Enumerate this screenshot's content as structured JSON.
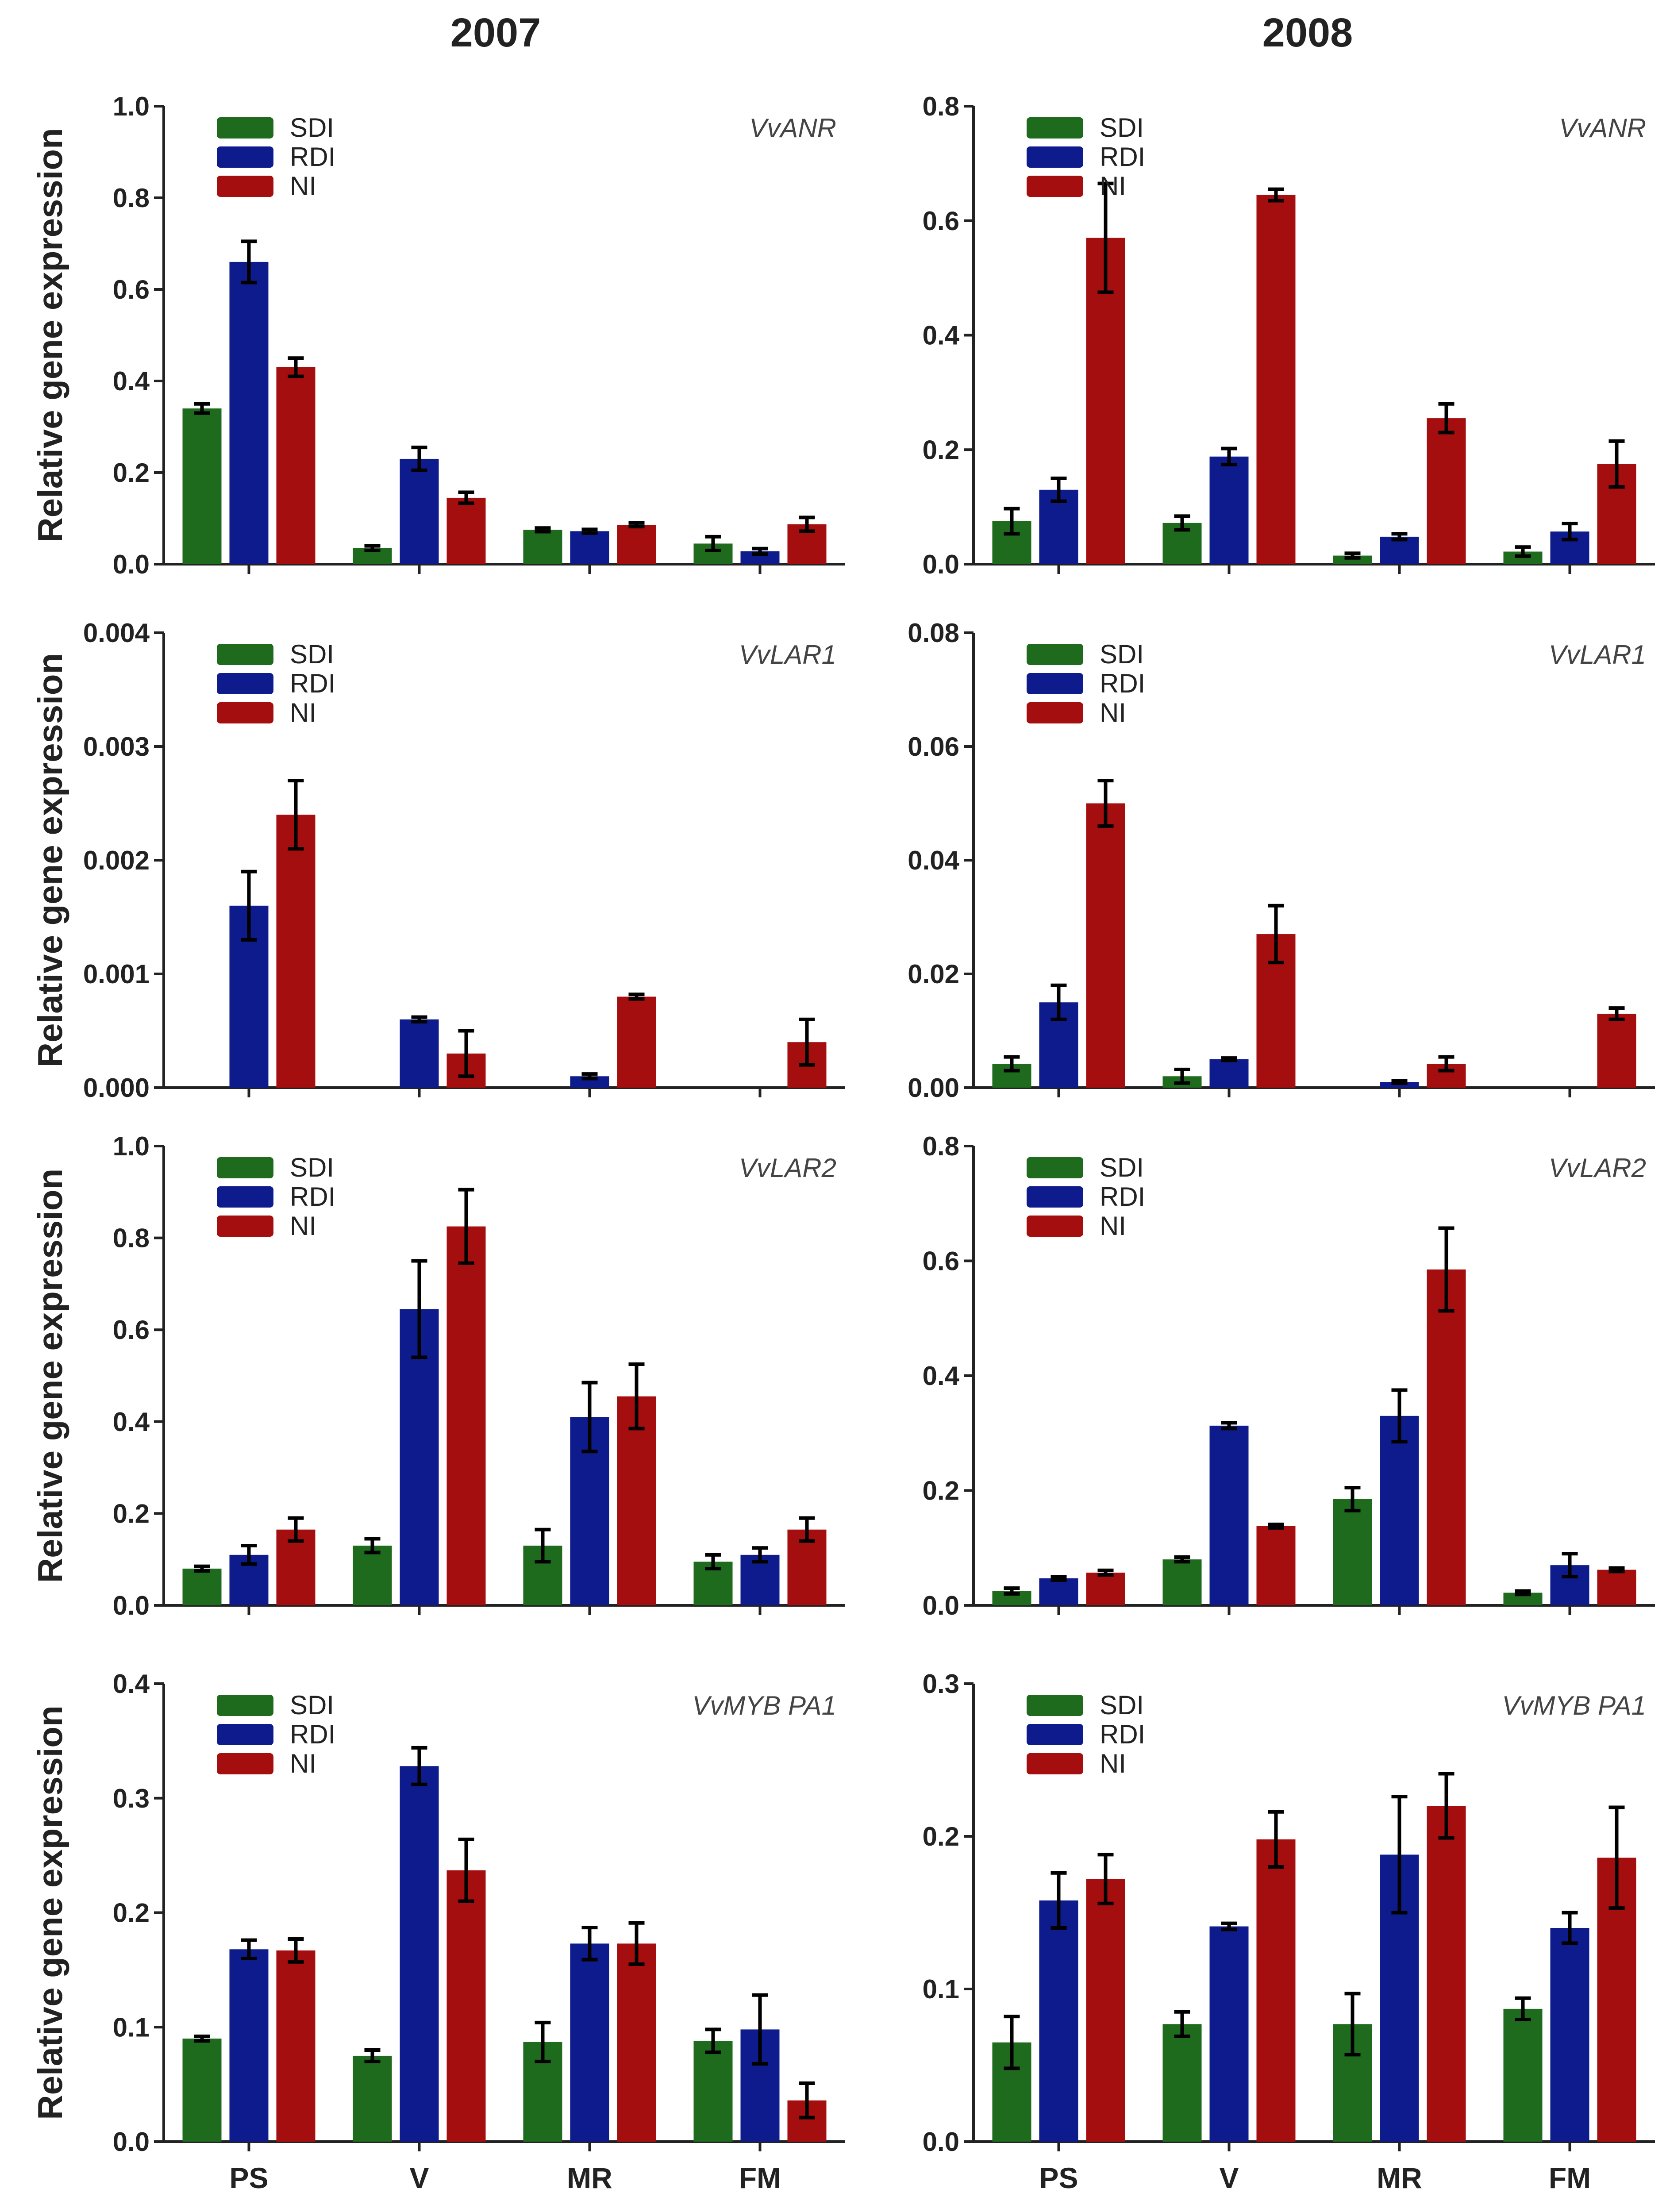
{
  "column_titles": [
    "2007",
    "2008"
  ],
  "chart_data": [
    {
      "type": "bar",
      "gene": "VvANR",
      "year": "2007",
      "ylabel": "Relative gene expression",
      "categories": [
        "PS",
        "V",
        "MR",
        "FM"
      ],
      "ylim": [
        0,
        1.0
      ],
      "yticks": [
        "0.0",
        "0.2",
        "0.4",
        "0.6",
        "0.8",
        "1.0"
      ],
      "legend": "top-left",
      "series": [
        {
          "name": "SDI",
          "color": "#1e6b1e",
          "values": [
            0.34,
            0.035,
            0.075,
            0.045
          ],
          "errors": [
            0.01,
            0.005,
            0.004,
            0.015
          ]
        },
        {
          "name": "RDI",
          "color": "#0d1b8c",
          "values": [
            0.66,
            0.23,
            0.072,
            0.028
          ],
          "errors": [
            0.045,
            0.025,
            0.004,
            0.006
          ]
        },
        {
          "name": "NI",
          "color": "#a50e0e",
          "values": [
            0.43,
            0.145,
            0.086,
            0.087
          ],
          "errors": [
            0.02,
            0.012,
            0.004,
            0.015
          ]
        }
      ]
    },
    {
      "type": "bar",
      "gene": "VvANR",
      "year": "2008",
      "ylabel": "",
      "categories": [
        "PS",
        "V",
        "MR",
        "FM"
      ],
      "ylim": [
        0,
        0.8
      ],
      "yticks": [
        "0.0",
        "0.2",
        "0.4",
        "0.6",
        "0.8"
      ],
      "legend": "top-left",
      "series": [
        {
          "name": "SDI",
          "color": "#1e6b1e",
          "values": [
            0.075,
            0.072,
            0.015,
            0.022
          ],
          "errors": [
            0.022,
            0.012,
            0.004,
            0.008
          ]
        },
        {
          "name": "RDI",
          "color": "#0d1b8c",
          "values": [
            0.13,
            0.188,
            0.048,
            0.057
          ],
          "errors": [
            0.02,
            0.014,
            0.005,
            0.014
          ]
        },
        {
          "name": "NI",
          "color": "#a50e0e",
          "values": [
            0.57,
            0.645,
            0.255,
            0.175
          ],
          "errors": [
            0.095,
            0.01,
            0.025,
            0.04
          ]
        }
      ]
    },
    {
      "type": "bar",
      "gene": "VvLAR1",
      "year": "2007",
      "ylabel": "Relative gene expression",
      "categories": [
        "PS",
        "V",
        "MR",
        "FM"
      ],
      "ylim": [
        0,
        0.004
      ],
      "yticks": [
        "0.000",
        "0.001",
        "0.002",
        "0.003",
        "0.004"
      ],
      "legend": "top-left",
      "series": [
        {
          "name": "SDI",
          "color": "#1e6b1e",
          "values": [
            0,
            0,
            0,
            0
          ],
          "errors": [
            0,
            0,
            0,
            0
          ]
        },
        {
          "name": "RDI",
          "color": "#0d1b8c",
          "values": [
            0.0016,
            0.0006,
            0.0001,
            0
          ],
          "errors": [
            0.0003,
            2e-05,
            2e-05,
            0
          ]
        },
        {
          "name": "NI",
          "color": "#a50e0e",
          "values": [
            0.0024,
            0.0003,
            0.0008,
            0.0004
          ],
          "errors": [
            0.0003,
            0.0002,
            2e-05,
            0.0002
          ]
        }
      ]
    },
    {
      "type": "bar",
      "gene": "VvLAR1",
      "year": "2008",
      "ylabel": "",
      "categories": [
        "PS",
        "V",
        "MR",
        "FM"
      ],
      "ylim": [
        0,
        0.08
      ],
      "yticks": [
        "0.00",
        "0.02",
        "0.04",
        "0.06",
        "0.08"
      ],
      "legend": "top-left",
      "series": [
        {
          "name": "SDI",
          "color": "#1e6b1e",
          "values": [
            0.0042,
            0.002,
            0,
            0
          ],
          "errors": [
            0.0012,
            0.0012,
            0,
            0
          ]
        },
        {
          "name": "RDI",
          "color": "#0d1b8c",
          "values": [
            0.015,
            0.005,
            0.001,
            0
          ],
          "errors": [
            0.003,
            0.0002,
            0.0002,
            0
          ]
        },
        {
          "name": "NI",
          "color": "#a50e0e",
          "values": [
            0.05,
            0.027,
            0.0042,
            0.013
          ],
          "errors": [
            0.004,
            0.005,
            0.0012,
            0.001
          ]
        }
      ]
    },
    {
      "type": "bar",
      "gene": "VvLAR2",
      "year": "2007",
      "ylabel": "Relative gene expression",
      "categories": [
        "PS",
        "V",
        "MR",
        "FM"
      ],
      "ylim": [
        0,
        1.0
      ],
      "yticks": [
        "0.0",
        "0.2",
        "0.4",
        "0.6",
        "0.8",
        "1.0"
      ],
      "legend": "top-left",
      "series": [
        {
          "name": "SDI",
          "color": "#1e6b1e",
          "values": [
            0.08,
            0.13,
            0.13,
            0.095
          ],
          "errors": [
            0.005,
            0.015,
            0.035,
            0.015
          ]
        },
        {
          "name": "RDI",
          "color": "#0d1b8c",
          "values": [
            0.11,
            0.645,
            0.41,
            0.11
          ],
          "errors": [
            0.02,
            0.105,
            0.075,
            0.015
          ]
        },
        {
          "name": "NI",
          "color": "#a50e0e",
          "values": [
            0.165,
            0.825,
            0.455,
            0.165
          ],
          "errors": [
            0.025,
            0.08,
            0.07,
            0.025
          ]
        }
      ]
    },
    {
      "type": "bar",
      "gene": "VvLAR2",
      "year": "2008",
      "ylabel": "",
      "categories": [
        "PS",
        "V",
        "MR",
        "FM"
      ],
      "ylim": [
        0,
        0.8
      ],
      "yticks": [
        "0.0",
        "0.2",
        "0.4",
        "0.6",
        "0.8"
      ],
      "legend": "top-left",
      "series": [
        {
          "name": "SDI",
          "color": "#1e6b1e",
          "values": [
            0.025,
            0.08,
            0.185,
            0.022
          ],
          "errors": [
            0.005,
            0.004,
            0.02,
            0.003
          ]
        },
        {
          "name": "RDI",
          "color": "#0d1b8c",
          "values": [
            0.047,
            0.313,
            0.33,
            0.07
          ],
          "errors": [
            0.003,
            0.005,
            0.045,
            0.02
          ]
        },
        {
          "name": "NI",
          "color": "#a50e0e",
          "values": [
            0.057,
            0.138,
            0.585,
            0.062
          ],
          "errors": [
            0.004,
            0.003,
            0.072,
            0.003
          ]
        }
      ]
    },
    {
      "type": "bar",
      "gene": "VvMYB PA1",
      "year": "2007",
      "ylabel": "Relative gene expression",
      "categories": [
        "PS",
        "V",
        "MR",
        "FM"
      ],
      "ylim": [
        0,
        0.4
      ],
      "yticks": [
        "0.0",
        "0.1",
        "0.2",
        "0.3",
        "0.4"
      ],
      "legend": "top-left",
      "series": [
        {
          "name": "SDI",
          "color": "#1e6b1e",
          "values": [
            0.09,
            0.075,
            0.087,
            0.088
          ],
          "errors": [
            0.002,
            0.005,
            0.017,
            0.01
          ]
        },
        {
          "name": "RDI",
          "color": "#0d1b8c",
          "values": [
            0.168,
            0.328,
            0.173,
            0.098
          ],
          "errors": [
            0.008,
            0.016,
            0.014,
            0.03
          ]
        },
        {
          "name": "NI",
          "color": "#a50e0e",
          "values": [
            0.167,
            0.237,
            0.173,
            0.036
          ],
          "errors": [
            0.01,
            0.027,
            0.018,
            0.015
          ]
        }
      ]
    },
    {
      "type": "bar",
      "gene": "VvMYB PA1",
      "year": "2008",
      "ylabel": "",
      "categories": [
        "PS",
        "V",
        "MR",
        "FM"
      ],
      "ylim": [
        0,
        0.3
      ],
      "yticks": [
        "0.0",
        "0.1",
        "0.2",
        "0.3"
      ],
      "legend": "top-left",
      "series": [
        {
          "name": "SDI",
          "color": "#1e6b1e",
          "values": [
            0.065,
            0.077,
            0.077,
            0.087
          ],
          "errors": [
            0.017,
            0.008,
            0.02,
            0.007
          ]
        },
        {
          "name": "RDI",
          "color": "#0d1b8c",
          "values": [
            0.158,
            0.141,
            0.188,
            0.14
          ],
          "errors": [
            0.018,
            0.002,
            0.038,
            0.01
          ]
        },
        {
          "name": "NI",
          "color": "#a50e0e",
          "values": [
            0.172,
            0.198,
            0.22,
            0.186
          ],
          "errors": [
            0.016,
            0.018,
            0.021,
            0.033
          ]
        }
      ]
    }
  ]
}
